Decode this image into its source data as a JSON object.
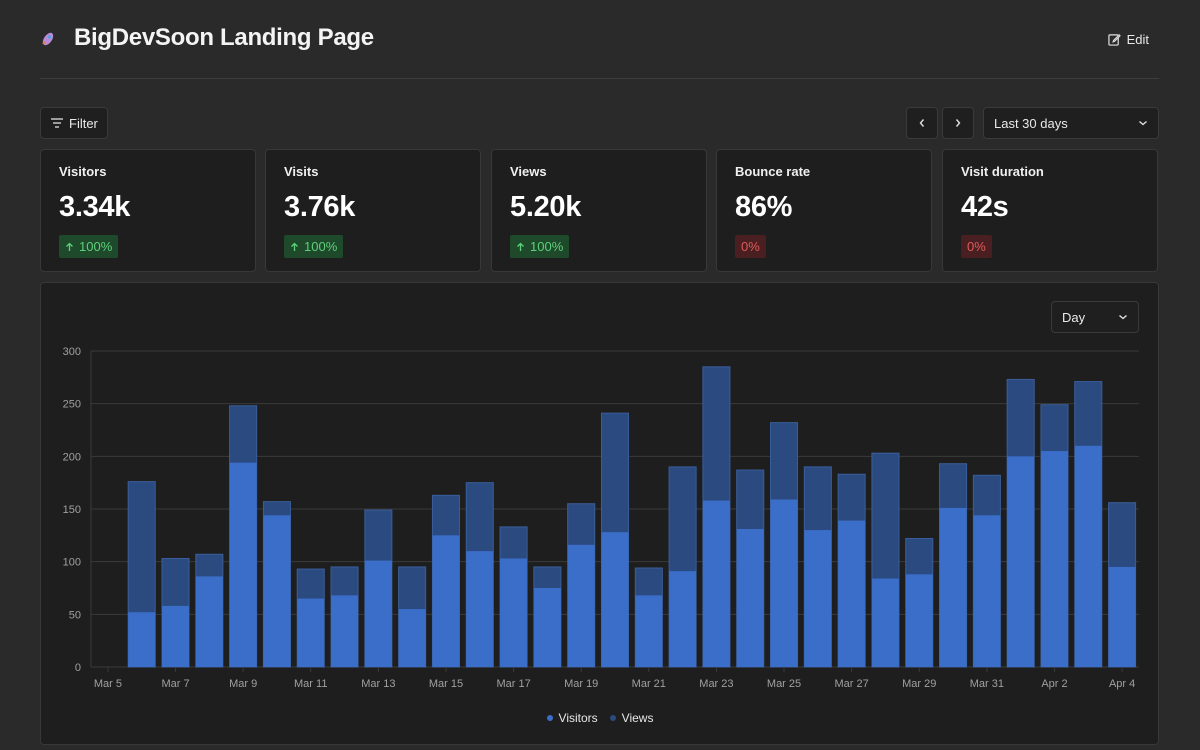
{
  "header": {
    "title": "BigDevSoon Landing Page",
    "edit_label": "Edit"
  },
  "toolbar": {
    "filter_label": "Filter",
    "range_label": "Last 30 days"
  },
  "stats": [
    {
      "label": "Visitors",
      "value": "3.34k",
      "change": "100%",
      "trend": "up"
    },
    {
      "label": "Visits",
      "value": "3.76k",
      "change": "100%",
      "trend": "up"
    },
    {
      "label": "Views",
      "value": "5.20k",
      "change": "100%",
      "trend": "up"
    },
    {
      "label": "Bounce rate",
      "value": "86%",
      "change": "0%",
      "trend": "down"
    },
    {
      "label": "Visit duration",
      "value": "42s",
      "change": "0%",
      "trend": "down"
    }
  ],
  "chart_controls": {
    "interval_label": "Day"
  },
  "colors": {
    "visitors": "#3b6ec9",
    "views": "#2b4a80",
    "up": "#5dd07a",
    "down": "#e15a5a"
  },
  "chart_data": {
    "type": "bar",
    "stacked": "overlay",
    "x": [
      "Mar 5",
      "Mar 6",
      "Mar 7",
      "Mar 8",
      "Mar 9",
      "Mar 10",
      "Mar 11",
      "Mar 12",
      "Mar 13",
      "Mar 14",
      "Mar 15",
      "Mar 16",
      "Mar 17",
      "Mar 18",
      "Mar 19",
      "Mar 20",
      "Mar 21",
      "Mar 22",
      "Mar 23",
      "Mar 24",
      "Mar 25",
      "Mar 26",
      "Mar 27",
      "Mar 28",
      "Mar 29",
      "Mar 30",
      "Mar 31",
      "Apr 1",
      "Apr 2",
      "Apr 3",
      "Apr 4"
    ],
    "tick_labels": [
      "Mar 5",
      "Mar 7",
      "Mar 9",
      "Mar 11",
      "Mar 13",
      "Mar 15",
      "Mar 17",
      "Mar 19",
      "Mar 21",
      "Mar 23",
      "Mar 25",
      "Mar 27",
      "Mar 29",
      "Mar 31",
      "Apr 2",
      "Apr 4"
    ],
    "series": [
      {
        "name": "Visitors",
        "values": [
          0,
          52,
          58,
          86,
          194,
          144,
          65,
          68,
          101,
          55,
          125,
          110,
          103,
          75,
          116,
          128,
          68,
          91,
          158,
          131,
          159,
          130,
          139,
          84,
          88,
          151,
          144,
          200,
          205,
          210,
          95
        ]
      },
      {
        "name": "Views",
        "values": [
          0,
          176,
          103,
          107,
          248,
          157,
          93,
          95,
          149,
          95,
          163,
          175,
          133,
          95,
          155,
          241,
          94,
          190,
          285,
          187,
          232,
          190,
          183,
          203,
          122,
          193,
          182,
          273,
          249,
          271,
          156
        ]
      }
    ],
    "ylim": [
      0,
      300
    ],
    "yticks": [
      "0",
      "50",
      "100",
      "150",
      "200",
      "250",
      "300"
    ],
    "grid": true,
    "legend": "bottom-center"
  }
}
